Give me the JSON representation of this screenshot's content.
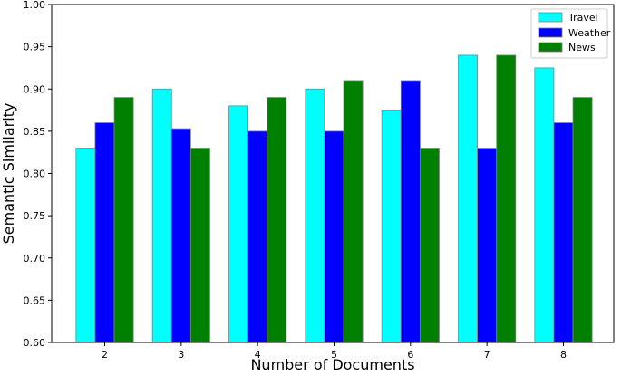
{
  "chart_data": {
    "type": "bar",
    "categories": [
      "2",
      "3",
      "4",
      "5",
      "6",
      "7",
      "8"
    ],
    "series": [
      {
        "name": "Travel",
        "color": "#00ffff",
        "values": [
          0.83,
          0.9,
          0.88,
          0.9,
          0.875,
          0.94,
          0.925
        ]
      },
      {
        "name": "Weather",
        "color": "#0000ff",
        "values": [
          0.86,
          0.853,
          0.85,
          0.85,
          0.91,
          0.83,
          0.86
        ]
      },
      {
        "name": "News",
        "color": "#008000",
        "values": [
          0.89,
          0.83,
          0.89,
          0.91,
          0.83,
          0.94,
          0.89
        ]
      }
    ],
    "title": "",
    "xlabel": "Number of Documents",
    "ylabel": "Semantic Similarity",
    "ylim": [
      0.6,
      1.0
    ],
    "yticks": [
      "0.60",
      "0.65",
      "0.70",
      "0.75",
      "0.80",
      "0.85",
      "0.90",
      "0.95",
      "1.00"
    ],
    "grid": false,
    "legend_position": "top-right"
  }
}
